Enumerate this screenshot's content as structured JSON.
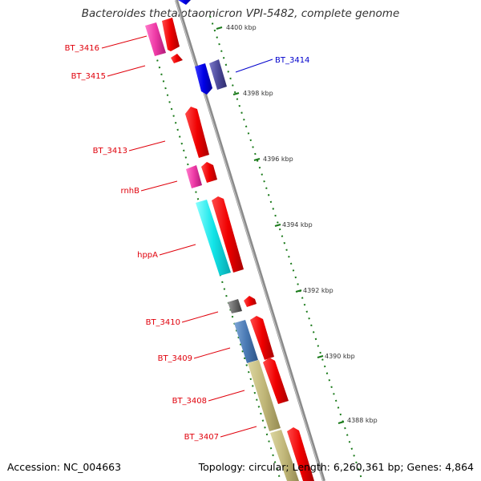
{
  "title": "Bacteroides thetaiotaomicron VPI-5482, complete genome",
  "accession": "Accession: NC_004663",
  "summary": "Topology: circular; Length: 6,260,361 bp; Genes: 4,864",
  "colors": {
    "forward_gene": "#f00000",
    "reverse_gene": "#0000e6",
    "backbone": "#888888",
    "gc_dots": "#1a7a1a",
    "label_red": "#e0000b",
    "label_blue": "#0000cc"
  },
  "scale_ticks": [
    "4400 kbp",
    "4398 kbp",
    "4396 kbp",
    "4394 kbp",
    "4392 kbp",
    "4390 kbp",
    "4388 kbp"
  ],
  "genes": [
    {
      "label": "BT_3416",
      "color": "red"
    },
    {
      "label": "BT_3415",
      "color": "red"
    },
    {
      "label": "BT_3414",
      "color": "blue"
    },
    {
      "label": "BT_3413",
      "color": "red"
    },
    {
      "label": "rnhB",
      "color": "red"
    },
    {
      "label": "hppA",
      "color": "red"
    },
    {
      "label": "BT_3410",
      "color": "red"
    },
    {
      "label": "BT_3409",
      "color": "red"
    },
    {
      "label": "BT_3408",
      "color": "red"
    },
    {
      "label": "BT_3407",
      "color": "red"
    }
  ]
}
